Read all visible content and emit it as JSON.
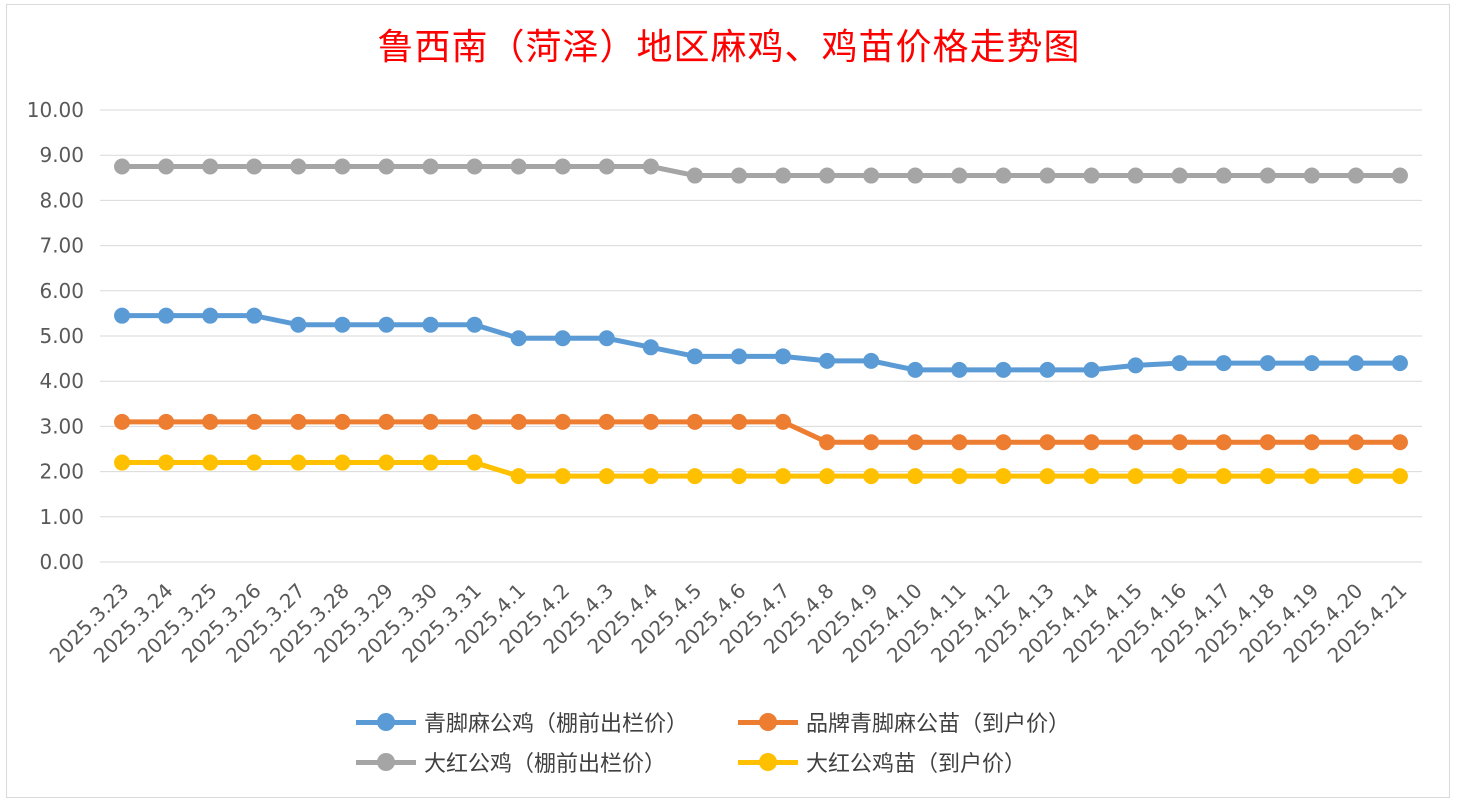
{
  "chart_data": {
    "type": "line",
    "title": "鲁西南（菏泽）地区麻鸡、鸡苗价格走势图",
    "xlabel": "",
    "ylabel": "",
    "ylim": [
      0,
      10
    ],
    "y_ticks": [
      "0.00",
      "1.00",
      "2.00",
      "3.00",
      "4.00",
      "5.00",
      "6.00",
      "7.00",
      "8.00",
      "9.00",
      "10.00"
    ],
    "grid": true,
    "legend_position": "bottom",
    "categories": [
      "2025.3.23",
      "2025.3.24",
      "2025.3.25",
      "2025.3.26",
      "2025.3.27",
      "2025.3.28",
      "2025.3.29",
      "2025.3.30",
      "2025.3.31",
      "2025.4.1",
      "2025.4.2",
      "2025.4.3",
      "2025.4.4",
      "2025.4.5",
      "2025.4.6",
      "2025.4.7",
      "2025.4.8",
      "2025.4.9",
      "2025.4.10",
      "2025.4.11",
      "2025.4.12",
      "2025.4.13",
      "2025.4.14",
      "2025.4.15",
      "2025.4.16",
      "2025.4.17",
      "2025.4.18",
      "2025.4.19",
      "2025.4.20",
      "2025.4.21"
    ],
    "series": [
      {
        "name": "青脚麻公鸡（棚前出栏价）",
        "color": "#5b9bd5",
        "values": [
          5.45,
          5.45,
          5.45,
          5.45,
          5.25,
          5.25,
          5.25,
          5.25,
          5.25,
          4.95,
          4.95,
          4.95,
          4.75,
          4.55,
          4.55,
          4.55,
          4.45,
          4.45,
          4.25,
          4.25,
          4.25,
          4.25,
          4.25,
          4.35,
          4.4,
          4.4,
          4.4,
          4.4,
          4.4,
          4.4
        ]
      },
      {
        "name": "品牌青脚麻公苗（到户价）",
        "color": "#ed7d31",
        "values": [
          3.1,
          3.1,
          3.1,
          3.1,
          3.1,
          3.1,
          3.1,
          3.1,
          3.1,
          3.1,
          3.1,
          3.1,
          3.1,
          3.1,
          3.1,
          3.1,
          2.65,
          2.65,
          2.65,
          2.65,
          2.65,
          2.65,
          2.65,
          2.65,
          2.65,
          2.65,
          2.65,
          2.65,
          2.65,
          2.65
        ]
      },
      {
        "name": "大红公鸡（棚前出栏价）",
        "color": "#a5a5a5",
        "values": [
          8.75,
          8.75,
          8.75,
          8.75,
          8.75,
          8.75,
          8.75,
          8.75,
          8.75,
          8.75,
          8.75,
          8.75,
          8.75,
          8.55,
          8.55,
          8.55,
          8.55,
          8.55,
          8.55,
          8.55,
          8.55,
          8.55,
          8.55,
          8.55,
          8.55,
          8.55,
          8.55,
          8.55,
          8.55,
          8.55
        ]
      },
      {
        "name": "大红公鸡苗（到户价）",
        "color": "#ffc000",
        "values": [
          2.2,
          2.2,
          2.2,
          2.2,
          2.2,
          2.2,
          2.2,
          2.2,
          2.2,
          1.9,
          1.9,
          1.9,
          1.9,
          1.9,
          1.9,
          1.9,
          1.9,
          1.9,
          1.9,
          1.9,
          1.9,
          1.9,
          1.9,
          1.9,
          1.9,
          1.9,
          1.9,
          1.9,
          1.9,
          1.9
        ]
      }
    ]
  }
}
